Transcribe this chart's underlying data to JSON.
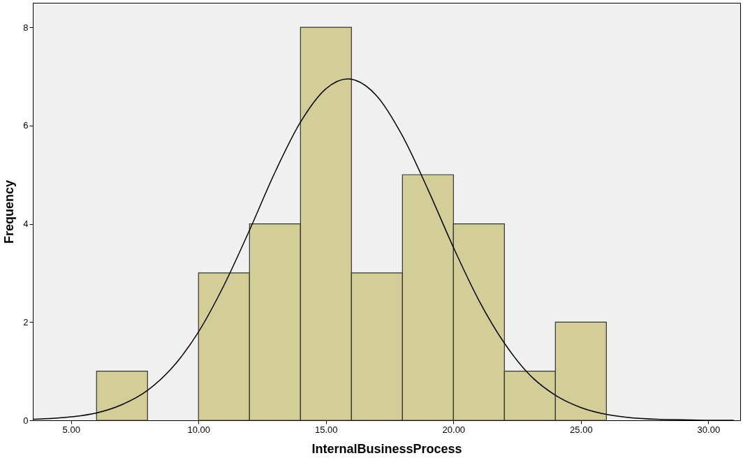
{
  "chart_data": {
    "type": "histogram",
    "xlabel": "InternalBusinessProcess",
    "ylabel": "Frequency",
    "bins": [
      6,
      8,
      10,
      12,
      14,
      16,
      18,
      20,
      22,
      24,
      26
    ],
    "values": [
      1,
      0,
      3,
      4,
      8,
      3,
      5,
      4,
      1,
      2
    ],
    "color": "#d3ce97",
    "series": [
      {
        "type": "line",
        "color": "#000000",
        "x": [
          3.5,
          5,
          6,
          7,
          8,
          9,
          10,
          11,
          12,
          13,
          14,
          15,
          15.85,
          17,
          18,
          19,
          20,
          21,
          22,
          23,
          24,
          25,
          26,
          27,
          28,
          29,
          30,
          31
        ],
        "values": [
          0.02,
          0.07,
          0.15,
          0.32,
          0.61,
          1.09,
          1.8,
          2.75,
          3.87,
          5.05,
          6.07,
          6.75,
          6.95,
          6.6,
          5.79,
          4.7,
          3.52,
          2.44,
          1.57,
          0.92,
          0.51,
          0.26,
          0.12,
          0.05,
          0.02,
          0.01,
          0.0,
          0.0
        ]
      }
    ],
    "xlim": [
      3.5,
      31.25
    ],
    "ylim": [
      0,
      8.5
    ],
    "xticks": [
      {
        "value": 5,
        "label": "5.00"
      },
      {
        "value": 10,
        "label": "10.00"
      },
      {
        "value": 15,
        "label": "15.00"
      },
      {
        "value": 20,
        "label": "20.00"
      },
      {
        "value": 25,
        "label": "25.00"
      },
      {
        "value": 30,
        "label": "30.00"
      }
    ],
    "yticks": [
      0,
      2,
      4,
      6,
      8
    ],
    "grid": false
  }
}
